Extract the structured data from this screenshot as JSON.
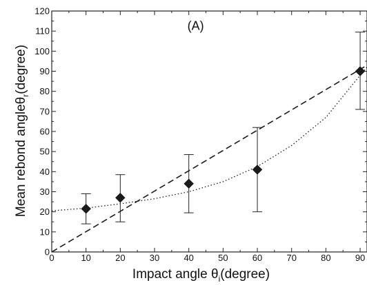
{
  "chart_data": {
    "type": "scatter",
    "panel_label": "(A)",
    "xlabel": {
      "main": "Impact angle ",
      "symbol": "θ",
      "sub": "i",
      "unit": "(degree)"
    },
    "ylabel": {
      "main": "Mean rebond angle",
      "symbol": "θ",
      "sub": "r",
      "unit": "(degree)"
    },
    "xlim": [
      0,
      92
    ],
    "ylim": [
      0,
      120
    ],
    "xticks": [
      0,
      10,
      20,
      30,
      40,
      50,
      60,
      70,
      80,
      90
    ],
    "yticks": [
      0,
      10,
      20,
      30,
      40,
      50,
      60,
      70,
      80,
      90,
      100,
      110,
      120
    ],
    "grid": false,
    "series": [
      {
        "kind": "points_with_errorbars",
        "marker": "diamond",
        "color": "#1a1a1a",
        "points": [
          {
            "x": 10,
            "y": 21.5,
            "ylow": 14,
            "yhigh": 29
          },
          {
            "x": 20,
            "y": 27,
            "ylow": 15,
            "yhigh": 38.5
          },
          {
            "x": 40,
            "y": 34,
            "ylow": 19.5,
            "yhigh": 48.5
          },
          {
            "x": 60,
            "y": 41,
            "ylow": 20,
            "yhigh": 62
          },
          {
            "x": 90,
            "y": 90,
            "ylow": 71,
            "yhigh": 109.5
          }
        ]
      },
      {
        "kind": "line",
        "style": "dashed",
        "color": "#1a1a1a",
        "x": [
          0,
          92
        ],
        "y": [
          0,
          93
        ]
      },
      {
        "kind": "line",
        "style": "dotted",
        "color": "#1a1a1a",
        "x": [
          0,
          10,
          20,
          30,
          40,
          50,
          60,
          70,
          80,
          90,
          92
        ],
        "y": [
          20.5,
          21.8,
          24,
          26.5,
          30,
          35,
          42.5,
          53,
          67,
          88,
          92
        ]
      }
    ]
  }
}
